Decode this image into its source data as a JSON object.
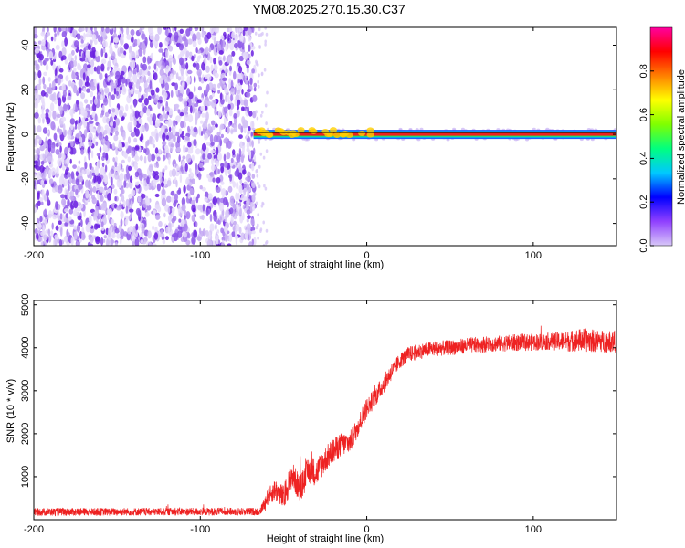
{
  "title": "YM08.2025.270.15.30.C37",
  "chart_data": [
    {
      "type": "heatmap",
      "name": "spectrogram",
      "xlabel": "Height of straight line (km)",
      "ylabel": "Frequency (Hz)",
      "xlim": [
        -200,
        150
      ],
      "ylim": [
        -50,
        48
      ],
      "xticks": [
        -200,
        -100,
        0,
        100
      ],
      "xtick_labels": [
        "-200",
        "-100",
        "0",
        "100"
      ],
      "yticks": [
        -40,
        -20,
        0,
        20,
        40
      ],
      "ytick_labels": [
        "-40",
        "-20",
        "0",
        "20",
        "40"
      ],
      "noise_region_x": [
        -200,
        -67
      ],
      "carrier_line": {
        "x_start": -68,
        "x_end": 150,
        "frequency": 0
      },
      "colorbar": {
        "label": "Normalized spectral amplitude",
        "range": [
          0,
          1
        ],
        "ticks": [
          0.0,
          0.2,
          0.4,
          0.6,
          0.8
        ],
        "tick_labels": [
          "0.0",
          "0.2",
          "0.4",
          "0.6",
          "0.8"
        ],
        "colors": [
          "#d8c8f8",
          "#9040ff",
          "#0000ff",
          "#00c8ff",
          "#00ff80",
          "#80ff00",
          "#ffff00",
          "#ff8000",
          "#ff0000",
          "#ff00a0"
        ]
      }
    },
    {
      "type": "line",
      "name": "snr",
      "xlabel": "Height of straight line (km)",
      "ylabel": "SNR (10 * v/v)",
      "xlim": [
        -200,
        150
      ],
      "ylim": [
        0,
        5100
      ],
      "xticks": [
        -200,
        -100,
        0,
        100
      ],
      "xtick_labels": [
        "-200",
        "-100",
        "0",
        "100"
      ],
      "yticks": [
        1000,
        2000,
        3000,
        4000,
        5000
      ],
      "ytick_labels": [
        "1000",
        "2000",
        "3000",
        "4000",
        "5000"
      ],
      "color": "#ee2222",
      "envelope": {
        "x": [
          -200,
          -64,
          -60,
          -55,
          -50,
          -45,
          -40,
          -35,
          -30,
          -25,
          -20,
          -15,
          -10,
          -5,
          0,
          5,
          10,
          15,
          20,
          25,
          30,
          35,
          40,
          50,
          60,
          70,
          80,
          90,
          100,
          110,
          120,
          130,
          140,
          150
        ],
        "mean": [
          180,
          190,
          500,
          700,
          500,
          1050,
          700,
          1150,
          1100,
          1400,
          1600,
          1750,
          1800,
          2200,
          2600,
          2850,
          3150,
          3450,
          3700,
          3850,
          3900,
          3950,
          3980,
          4000,
          4050,
          4080,
          4100,
          4120,
          4130,
          4150,
          4150,
          4180,
          4150,
          4150
        ],
        "noise": [
          90,
          90,
          180,
          260,
          300,
          320,
          320,
          330,
          320,
          300,
          300,
          280,
          260,
          250,
          240,
          230,
          220,
          200,
          180,
          180,
          180,
          180,
          180,
          180,
          180,
          190,
          190,
          200,
          200,
          200,
          240,
          280,
          260,
          260
        ]
      }
    }
  ]
}
